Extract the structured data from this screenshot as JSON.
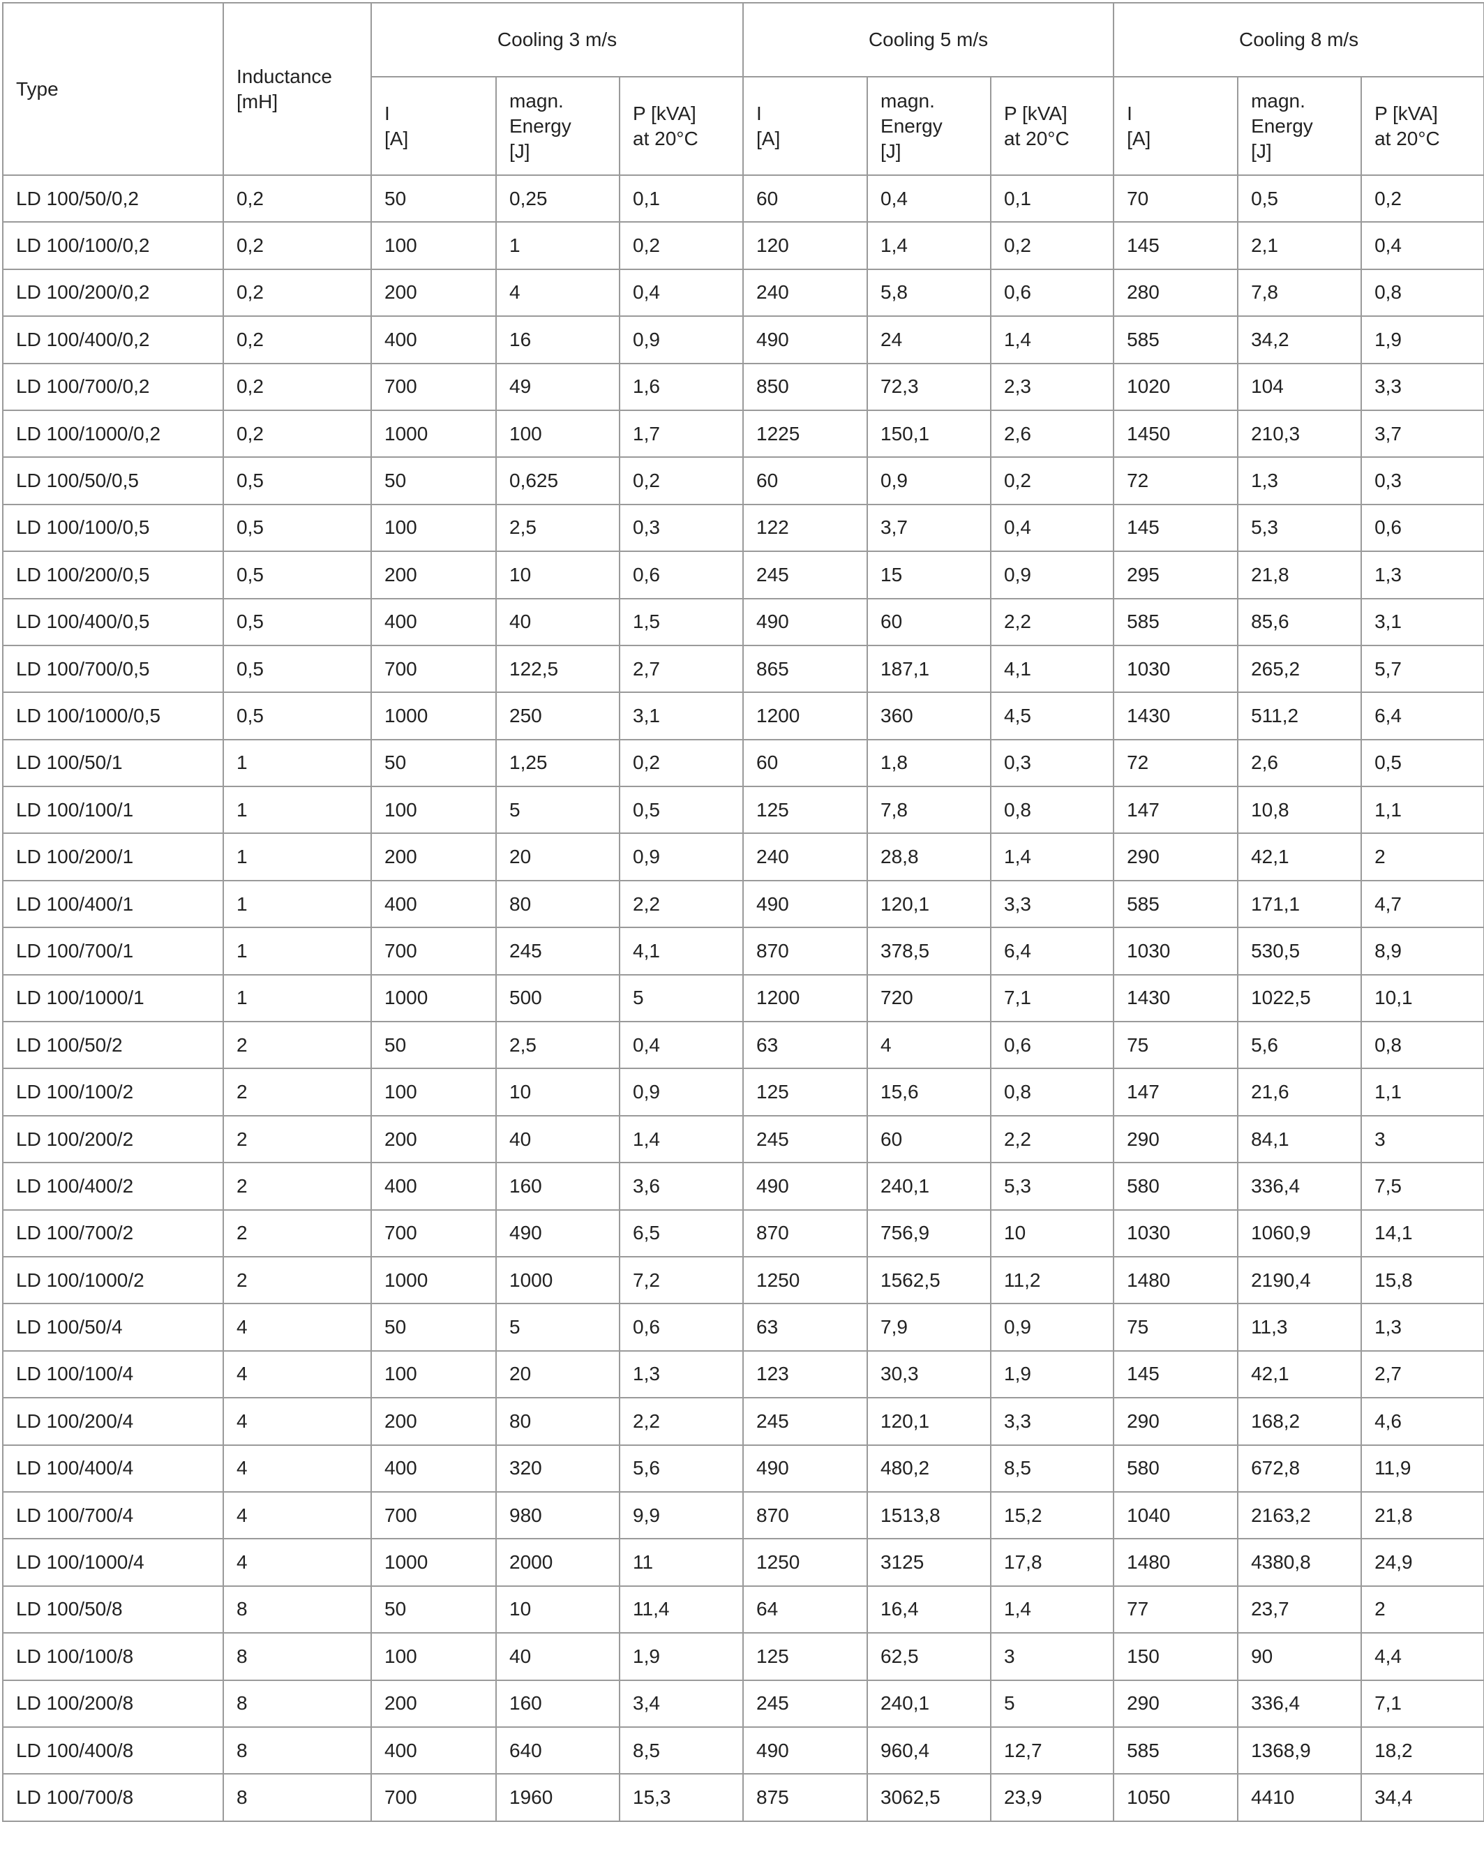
{
  "table": {
    "header": {
      "type": "Type",
      "inductance": "Inductance\n[mH]",
      "groups": [
        "Cooling 3 m/s",
        "Cooling 5 m/s",
        "Cooling 8 m/s"
      ],
      "subheaders": [
        [
          "I\n[A]",
          "magn.\nEnergy\n[J]",
          "P [kVA]\nat 20°C"
        ],
        [
          "I\n[A]",
          "magn.\nEnergy\n[J]",
          "P [kVA]\nat 20°C"
        ],
        [
          "I\n[A]",
          "magn.\nEnergy\n[J]",
          "P [kVA]\nat 20°C"
        ]
      ]
    },
    "rows": [
      [
        "LD 100/50/0,2",
        "0,2",
        "50",
        "0,25",
        "0,1",
        "60",
        "0,4",
        "0,1",
        "70",
        "0,5",
        "0,2"
      ],
      [
        "LD 100/100/0,2",
        "0,2",
        "100",
        "1",
        "0,2",
        "120",
        "1,4",
        "0,2",
        "145",
        "2,1",
        "0,4"
      ],
      [
        "LD 100/200/0,2",
        "0,2",
        "200",
        "4",
        "0,4",
        "240",
        "5,8",
        "0,6",
        "280",
        "7,8",
        "0,8"
      ],
      [
        "LD 100/400/0,2",
        "0,2",
        "400",
        "16",
        "0,9",
        "490",
        "24",
        "1,4",
        "585",
        "34,2",
        "1,9"
      ],
      [
        "LD 100/700/0,2",
        "0,2",
        "700",
        "49",
        "1,6",
        "850",
        "72,3",
        "2,3",
        "1020",
        "104",
        "3,3"
      ],
      [
        "LD 100/1000/0,2",
        "0,2",
        "1000",
        "100",
        "1,7",
        "1225",
        "150,1",
        "2,6",
        "1450",
        "210,3",
        "3,7"
      ],
      [
        "LD 100/50/0,5",
        "0,5",
        "50",
        "0,625",
        "0,2",
        "60",
        "0,9",
        "0,2",
        "72",
        "1,3",
        "0,3"
      ],
      [
        "LD 100/100/0,5",
        "0,5",
        "100",
        "2,5",
        "0,3",
        "122",
        "3,7",
        "0,4",
        "145",
        "5,3",
        "0,6"
      ],
      [
        "LD 100/200/0,5",
        "0,5",
        "200",
        "10",
        "0,6",
        "245",
        "15",
        "0,9",
        "295",
        "21,8",
        "1,3"
      ],
      [
        "LD 100/400/0,5",
        "0,5",
        "400",
        "40",
        "1,5",
        "490",
        "60",
        "2,2",
        "585",
        "85,6",
        "3,1"
      ],
      [
        "LD 100/700/0,5",
        "0,5",
        "700",
        "122,5",
        "2,7",
        "865",
        "187,1",
        "4,1",
        "1030",
        "265,2",
        "5,7"
      ],
      [
        "LD 100/1000/0,5",
        "0,5",
        "1000",
        "250",
        "3,1",
        "1200",
        "360",
        "4,5",
        "1430",
        "511,2",
        "6,4"
      ],
      [
        "LD 100/50/1",
        "1",
        "50",
        "1,25",
        "0,2",
        "60",
        "1,8",
        "0,3",
        "72",
        "2,6",
        "0,5"
      ],
      [
        "LD 100/100/1",
        "1",
        "100",
        "5",
        "0,5",
        "125",
        "7,8",
        "0,8",
        "147",
        "10,8",
        "1,1"
      ],
      [
        "LD 100/200/1",
        "1",
        "200",
        "20",
        "0,9",
        "240",
        "28,8",
        "1,4",
        "290",
        "42,1",
        "2"
      ],
      [
        "LD 100/400/1",
        "1",
        "400",
        "80",
        "2,2",
        "490",
        "120,1",
        "3,3",
        "585",
        "171,1",
        "4,7"
      ],
      [
        "LD 100/700/1",
        "1",
        "700",
        "245",
        "4,1",
        "870",
        "378,5",
        "6,4",
        "1030",
        "530,5",
        "8,9"
      ],
      [
        "LD 100/1000/1",
        "1",
        "1000",
        "500",
        "5",
        "1200",
        "720",
        "7,1",
        "1430",
        "1022,5",
        "10,1"
      ],
      [
        "LD 100/50/2",
        "2",
        "50",
        "2,5",
        "0,4",
        "63",
        "4",
        "0,6",
        "75",
        "5,6",
        "0,8"
      ],
      [
        "LD 100/100/2",
        "2",
        "100",
        "10",
        "0,9",
        "125",
        "15,6",
        "0,8",
        "147",
        "21,6",
        "1,1"
      ],
      [
        "LD 100/200/2",
        "2",
        "200",
        "40",
        "1,4",
        "245",
        "60",
        "2,2",
        "290",
        "84,1",
        "3"
      ],
      [
        "LD 100/400/2",
        "2",
        "400",
        "160",
        "3,6",
        "490",
        "240,1",
        "5,3",
        "580",
        "336,4",
        "7,5"
      ],
      [
        "LD 100/700/2",
        "2",
        "700",
        "490",
        "6,5",
        "870",
        "756,9",
        "10",
        "1030",
        "1060,9",
        "14,1"
      ],
      [
        "LD 100/1000/2",
        "2",
        "1000",
        "1000",
        "7,2",
        "1250",
        "1562,5",
        "11,2",
        "1480",
        "2190,4",
        "15,8"
      ],
      [
        "LD 100/50/4",
        "4",
        "50",
        "5",
        "0,6",
        "63",
        "7,9",
        "0,9",
        "75",
        "11,3",
        "1,3"
      ],
      [
        "LD 100/100/4",
        "4",
        "100",
        "20",
        "1,3",
        "123",
        "30,3",
        "1,9",
        "145",
        "42,1",
        "2,7"
      ],
      [
        "LD 100/200/4",
        "4",
        "200",
        "80",
        "2,2",
        "245",
        "120,1",
        "3,3",
        "290",
        "168,2",
        "4,6"
      ],
      [
        "LD 100/400/4",
        "4",
        "400",
        "320",
        "5,6",
        "490",
        "480,2",
        "8,5",
        "580",
        "672,8",
        "11,9"
      ],
      [
        "LD 100/700/4",
        "4",
        "700",
        "980",
        "9,9",
        "870",
        "1513,8",
        "15,2",
        "1040",
        "2163,2",
        "21,8"
      ],
      [
        "LD 100/1000/4",
        "4",
        "1000",
        "2000",
        "11",
        "1250",
        "3125",
        "17,8",
        "1480",
        "4380,8",
        "24,9"
      ],
      [
        "LD 100/50/8",
        "8",
        "50",
        "10",
        "11,4",
        "64",
        "16,4",
        "1,4",
        "77",
        "23,7",
        "2"
      ],
      [
        "LD 100/100/8",
        "8",
        "100",
        "40",
        "1,9",
        "125",
        "62,5",
        "3",
        "150",
        "90",
        "4,4"
      ],
      [
        "LD 100/200/8",
        "8",
        "200",
        "160",
        "3,4",
        "245",
        "240,1",
        "5",
        "290",
        "336,4",
        "7,1"
      ],
      [
        "LD 100/400/8",
        "8",
        "400",
        "640",
        "8,5",
        "490",
        "960,4",
        "12,7",
        "585",
        "1368,9",
        "18,2"
      ],
      [
        "LD 100/700/8",
        "8",
        "700",
        "1960",
        "15,3",
        "875",
        "3062,5",
        "23,9",
        "1050",
        "4410",
        "34,4"
      ]
    ]
  }
}
